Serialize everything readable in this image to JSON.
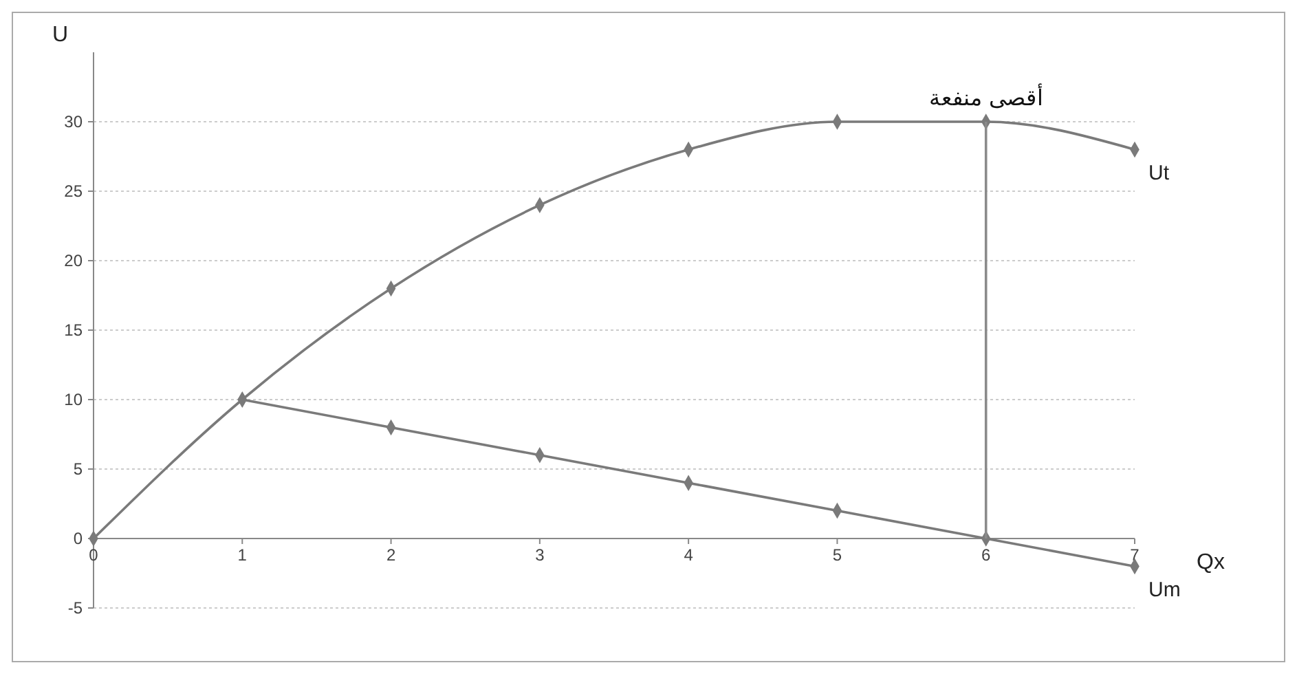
{
  "chart_data": {
    "type": "line",
    "xlabel": "Qx",
    "ylabel": "U",
    "x": [
      0,
      1,
      2,
      3,
      4,
      5,
      6,
      7
    ],
    "series": [
      {
        "name": "Ut",
        "color": "#7a7a7a",
        "values": [
          0,
          10,
          18,
          24,
          28,
          30,
          30,
          28
        ]
      },
      {
        "name": "Um",
        "color": "#7a7a7a",
        "x": [
          1,
          2,
          3,
          4,
          5,
          6,
          7
        ],
        "values": [
          10,
          8,
          6,
          4,
          2,
          0,
          -2
        ]
      },
      {
        "color": "#8a8a8a",
        "x": [
          6,
          6
        ],
        "values": [
          0,
          30
        ],
        "marker": "none"
      }
    ],
    "xlim": [
      0,
      7
    ],
    "xticks": [
      0,
      1,
      2,
      3,
      4,
      5,
      6,
      7
    ],
    "ylim": [
      -5,
      35
    ],
    "yticks": [
      -5,
      0,
      5,
      10,
      15,
      20,
      25,
      30
    ],
    "grid": "y",
    "marker": "diamond",
    "line_style": "solid",
    "annotations": [
      {
        "text": "أقصى منفعة",
        "x": 6,
        "y": 30
      }
    ]
  }
}
